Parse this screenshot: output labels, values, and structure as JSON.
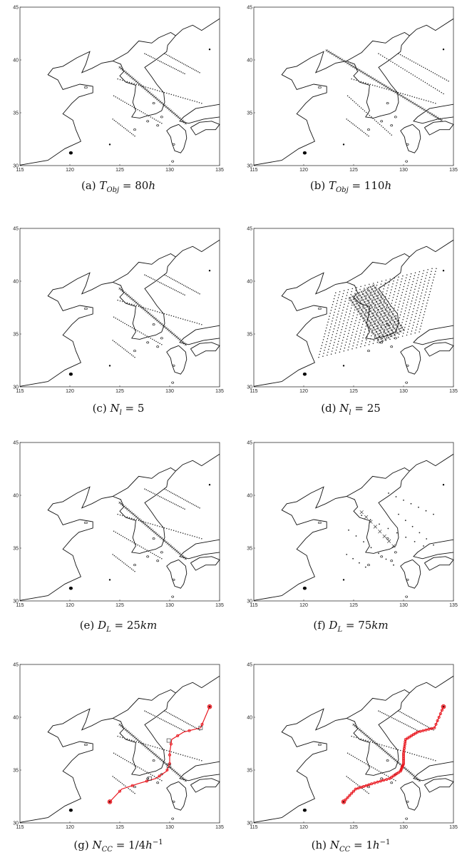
{
  "figure": {
    "x_ticks": [
      "115",
      "120",
      "125",
      "130",
      "135"
    ],
    "y_ticks": [
      "30",
      "35",
      "40",
      "45"
    ]
  },
  "panels": [
    {
      "id": "a",
      "caption": {
        "tag": "(a)",
        "var": "T",
        "sub": "Obj",
        "rest": " = 80",
        "unit": "h",
        "sup": ""
      },
      "lines": 5,
      "spacing_km": 25,
      "long_lines": false,
      "route": "none"
    },
    {
      "id": "b",
      "caption": {
        "tag": "(b)",
        "var": "T",
        "sub": "Obj",
        "rest": " = 110",
        "unit": "h",
        "sup": ""
      },
      "lines": 5,
      "spacing_km": 25,
      "long_lines": true,
      "route": "none"
    },
    {
      "id": "c",
      "caption": {
        "tag": "(c)",
        "var": "N",
        "sub": "l",
        "rest": " = 5",
        "unit": "",
        "sup": ""
      },
      "lines": 5,
      "spacing_km": 25,
      "long_lines": false,
      "route": "none"
    },
    {
      "id": "d",
      "caption": {
        "tag": "(d)",
        "var": "N",
        "sub": "l",
        "rest": " = 25",
        "unit": "",
        "sup": ""
      },
      "lines": 25,
      "spacing_km": 25,
      "long_lines": false,
      "route": "none"
    },
    {
      "id": "e",
      "caption": {
        "tag": "(e)",
        "var": "D",
        "sub": "L",
        "rest": " = 25",
        "unit": "km",
        "sup": ""
      },
      "lines": 5,
      "spacing_km": 25,
      "long_lines": false,
      "route": "none"
    },
    {
      "id": "f",
      "caption": {
        "tag": "(f)",
        "var": "D",
        "sub": "L",
        "rest": " = 75",
        "unit": "km",
        "sup": ""
      },
      "lines": 5,
      "spacing_km": 75,
      "long_lines": false,
      "route": "none"
    },
    {
      "id": "g",
      "caption": {
        "tag": "(g)",
        "var": "N",
        "sub": "CC",
        "rest": " = 1/4",
        "unit": "h",
        "sup": "−1"
      },
      "lines": 5,
      "spacing_km": 25,
      "long_lines": false,
      "route": "coarse"
    },
    {
      "id": "h",
      "caption": {
        "tag": "(h)",
        "var": "N",
        "sub": "CC",
        "rest": " = 1",
        "unit": "h",
        "sup": "−1"
      },
      "lines": 5,
      "spacing_km": 25,
      "long_lines": false,
      "route": "fine"
    }
  ],
  "colors": {
    "coast": "#111111",
    "route": "#e8131b",
    "marker": "#222222",
    "frame": "#333333"
  }
}
